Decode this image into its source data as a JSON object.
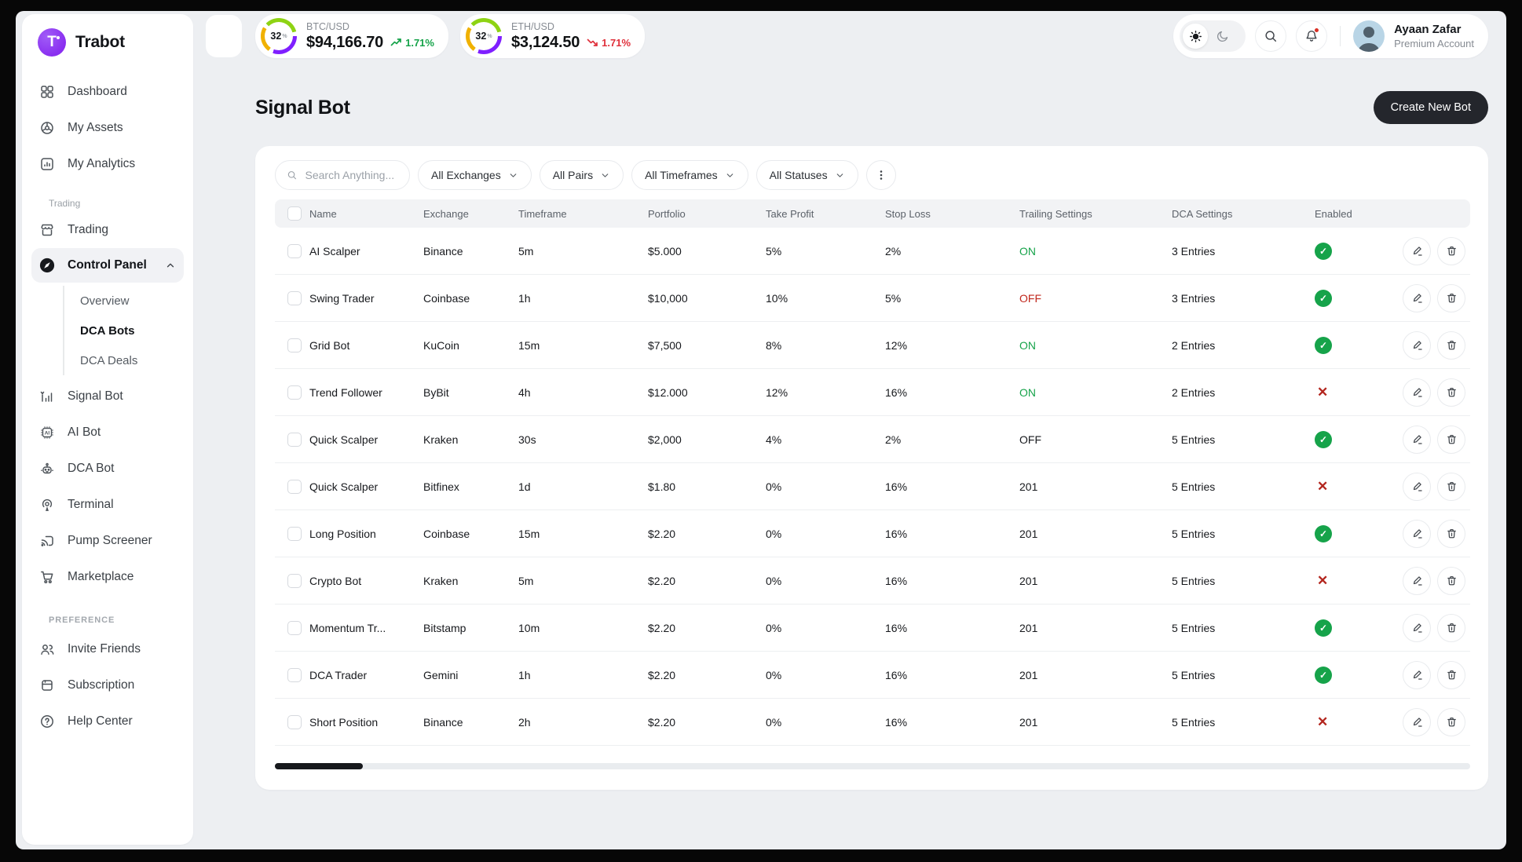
{
  "colors": {
    "accent_purple": "#8a2ff0",
    "green": "#16a34a",
    "red": "#b3261e",
    "dark": "#24262c",
    "ring_lime": "#8ed313",
    "ring_purple": "#7f1fff",
    "ring_amber": "#f0b100"
  },
  "sidebar": {
    "logo_text": "Trabot",
    "main_items": [
      {
        "label": "Dashboard",
        "icon": "grid-icon"
      },
      {
        "label": "My Assets",
        "icon": "assets-wheel-icon"
      },
      {
        "label": "My Analytics",
        "icon": "analytics-chart-icon"
      }
    ],
    "trading_section_label": "Trading",
    "trading_items": [
      {
        "label": "Trading",
        "icon": "storefront-icon"
      },
      {
        "label": "Control Panel",
        "icon": "compass-icon",
        "active": true,
        "expanded": true
      },
      {
        "label": "Signal Bot",
        "icon": "signal-bars-icon"
      },
      {
        "label": "AI Bot",
        "icon": "ai-chip-icon"
      },
      {
        "label": "DCA Bot",
        "icon": "robot-icon"
      },
      {
        "label": "Terminal",
        "icon": "broadcast-icon"
      },
      {
        "label": "Pump Screener",
        "icon": "screen-cast-icon"
      },
      {
        "label": "Marketplace",
        "icon": "cart-icon"
      }
    ],
    "control_panel_subitems": [
      {
        "label": "Overview"
      },
      {
        "label": "DCA Bots",
        "active": true
      },
      {
        "label": "DCA Deals"
      }
    ],
    "preference_section_label": "PREFERENCE",
    "preference_items": [
      {
        "label": "Invite Friends",
        "icon": "users-icon"
      },
      {
        "label": "Subscription",
        "icon": "subscription-card-icon"
      },
      {
        "label": "Help Center",
        "icon": "help-icon"
      }
    ]
  },
  "header": {
    "tickers": [
      {
        "pair": "BTC/USD",
        "percent": "32",
        "percent_unit": "%",
        "price": "$94,166.70",
        "change": "1.71%",
        "direction": "up"
      },
      {
        "pair": "ETH/USD",
        "percent": "32",
        "percent_unit": "%",
        "price": "$3,124.50",
        "change": "1.71%",
        "direction": "down"
      }
    ],
    "user": {
      "name": "Ayaan Zafar",
      "plan": "Premium Account"
    }
  },
  "page": {
    "title": "Signal Bot",
    "create_button_label": "Create New Bot"
  },
  "filters": {
    "search_placeholder": "Search Anything...",
    "dropdowns": [
      "All Exchanges",
      "All Pairs",
      "All Timeframes",
      "All Statuses"
    ]
  },
  "table": {
    "columns": [
      "Name",
      "Exchange",
      "Timeframe",
      "Portfolio",
      "Take Profit",
      "Stop Loss",
      "Trailing Settings",
      "DCA Settings",
      "Enabled"
    ],
    "rows": [
      {
        "name": "AI Scalper",
        "exchange": "Binance",
        "timeframe": "5m",
        "portfolio": "$5.000",
        "take_profit": "5%",
        "stop_loss": "2%",
        "trailing": "ON",
        "trailing_style": "on",
        "dca": "3 Entries",
        "enabled": "check"
      },
      {
        "name": "Swing Trader",
        "exchange": "Coinbase",
        "timeframe": "1h",
        "portfolio": "$10,000",
        "take_profit": "10%",
        "stop_loss": "5%",
        "trailing": "OFF",
        "trailing_style": "off",
        "dca": "3 Entries",
        "enabled": "check"
      },
      {
        "name": "Grid Bot",
        "exchange": "KuCoin",
        "timeframe": "15m",
        "portfolio": "$7,500",
        "take_profit": "8%",
        "stop_loss": "12%",
        "trailing": "ON",
        "trailing_style": "on",
        "dca": "2 Entries",
        "enabled": "check"
      },
      {
        "name": "Trend Follower",
        "exchange": "ByBit",
        "timeframe": "4h",
        "portfolio": "$12.000",
        "take_profit": "12%",
        "stop_loss": "16%",
        "trailing": "ON",
        "trailing_style": "on",
        "dca": "2 Entries",
        "enabled": "cross"
      },
      {
        "name": "Quick Scalper",
        "exchange": "Kraken",
        "timeframe": "30s",
        "portfolio": "$2,000",
        "take_profit": "4%",
        "stop_loss": "2%",
        "trailing": "OFF",
        "trailing_style": "neutral",
        "dca": "5 Entries",
        "enabled": "check"
      },
      {
        "name": "Quick Scalper",
        "exchange": "Bitfinex",
        "timeframe": "1d",
        "portfolio": "$1.80",
        "take_profit": "0%",
        "stop_loss": "16%",
        "trailing": "201",
        "trailing_style": "neutral",
        "dca": "5 Entries",
        "enabled": "cross"
      },
      {
        "name": "Long Position",
        "exchange": "Coinbase",
        "timeframe": "15m",
        "portfolio": "$2.20",
        "take_profit": "0%",
        "stop_loss": "16%",
        "trailing": "201",
        "trailing_style": "neutral",
        "dca": "5 Entries",
        "enabled": "check"
      },
      {
        "name": "Crypto Bot",
        "exchange": "Kraken",
        "timeframe": "5m",
        "portfolio": "$2.20",
        "take_profit": "0%",
        "stop_loss": "16%",
        "trailing": "201",
        "trailing_style": "neutral",
        "dca": "5 Entries",
        "enabled": "cross"
      },
      {
        "name": "Momentum Tr...",
        "exchange": "Bitstamp",
        "timeframe": "10m",
        "portfolio": "$2.20",
        "take_profit": "0%",
        "stop_loss": "16%",
        "trailing": "201",
        "trailing_style": "neutral",
        "dca": "5 Entries",
        "enabled": "check"
      },
      {
        "name": "DCA Trader",
        "exchange": "Gemini",
        "timeframe": "1h",
        "portfolio": "$2.20",
        "take_profit": "0%",
        "stop_loss": "16%",
        "trailing": "201",
        "trailing_style": "neutral",
        "dca": "5 Entries",
        "enabled": "check"
      },
      {
        "name": "Short Position",
        "exchange": "Binance",
        "timeframe": "2h",
        "portfolio": "$2.20",
        "take_profit": "0%",
        "stop_loss": "16%",
        "trailing": "201",
        "trailing_style": "neutral",
        "dca": "5 Entries",
        "enabled": "cross"
      }
    ]
  }
}
